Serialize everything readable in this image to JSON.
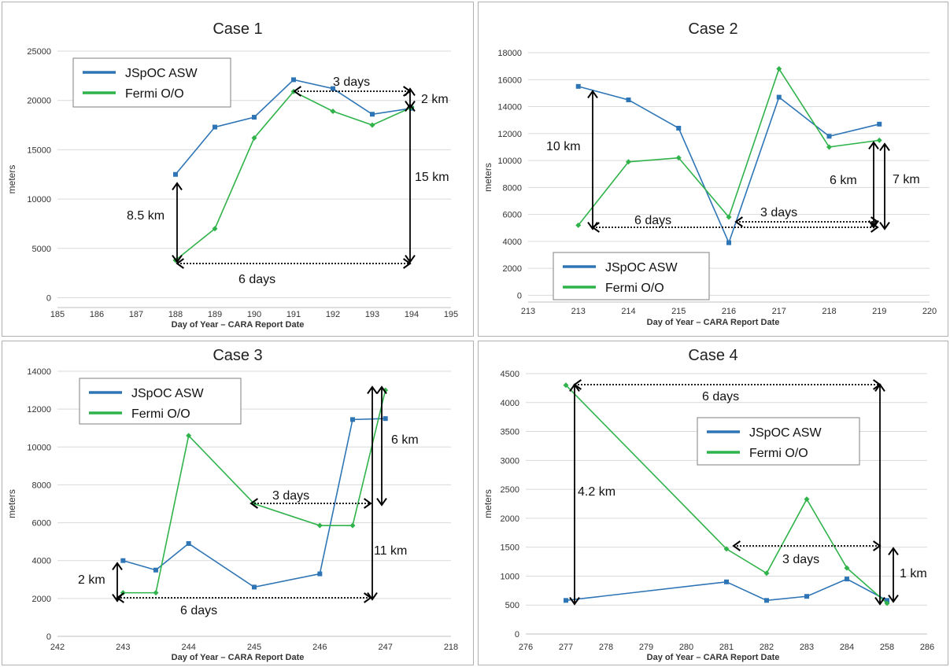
{
  "chart_data": [
    {
      "type": "line",
      "title": "Case 1",
      "xlabel": "Day of Year – CARA Report Date",
      "ylabel": "meters",
      "x_tick_labels": [
        "185",
        "186",
        "187",
        "188",
        "189",
        "190",
        "191",
        "192",
        "193",
        "194",
        "195"
      ],
      "y_ticks": [
        0,
        5000,
        10000,
        15000,
        20000,
        25000
      ],
      "ylim": [
        -1000,
        25000
      ],
      "grid": true,
      "legend": "top-left",
      "series": [
        {
          "name": "JSpOC ASW",
          "color": "#2e75b6",
          "marker": "square",
          "x": [
            3,
            4,
            5,
            6,
            7,
            8,
            9
          ],
          "y": [
            12500,
            17300,
            18300,
            22100,
            21200,
            18600,
            19200
          ]
        },
        {
          "name": "Fermi O/O",
          "color": "#2fb34a",
          "marker": "diamond",
          "x": [
            3,
            4,
            5,
            6,
            7,
            8,
            9
          ],
          "y": [
            3800,
            7000,
            16200,
            20900,
            18900,
            17500,
            19300
          ]
        }
      ],
      "annotations": [
        "8.5 km",
        "6 days",
        "3 days",
        "2 km",
        "15 km"
      ]
    },
    {
      "type": "line",
      "title": "Case 2",
      "xlabel": "Day of Year – CARA Report Date",
      "ylabel": "meters",
      "x_tick_labels": [
        "213",
        "213",
        "214",
        "215",
        "216",
        "217",
        "218",
        "219",
        "220"
      ],
      "y_ticks": [
        0,
        2000,
        4000,
        6000,
        8000,
        10000,
        12000,
        14000,
        16000,
        18000
      ],
      "ylim": [
        -500,
        18000
      ],
      "grid": true,
      "legend": "bottom-left",
      "series": [
        {
          "name": "JSpOC ASW",
          "color": "#2e75b6",
          "marker": "square",
          "x": [
            1,
            2,
            3,
            4,
            5,
            6,
            7
          ],
          "y": [
            15500,
            14500,
            12400,
            3900,
            14700,
            11800,
            12700
          ]
        },
        {
          "name": "Fermi O/O",
          "color": "#2fb34a",
          "marker": "diamond",
          "x": [
            1,
            2,
            3,
            4,
            5,
            6,
            7
          ],
          "y": [
            5200,
            9900,
            10200,
            5800,
            16800,
            11000,
            11500
          ]
        }
      ],
      "annotations": [
        "10 km",
        "6 days",
        "3 days",
        "6 km",
        "7 km"
      ]
    },
    {
      "type": "line",
      "title": "Case 3",
      "xlabel": "Day of Year – CARA Report Date",
      "ylabel": "meters",
      "x_tick_labels": [
        "242",
        "243",
        "244",
        "245",
        "246",
        "247",
        "218"
      ],
      "y_ticks": [
        0,
        2000,
        4000,
        6000,
        8000,
        10000,
        12000,
        14000
      ],
      "ylim": [
        0,
        14000
      ],
      "grid": true,
      "legend": "top-left",
      "series": [
        {
          "name": "JSpOC ASW",
          "color": "#2e75b6",
          "marker": "square",
          "x": [
            1,
            1.5,
            2,
            3,
            4,
            4.5,
            5
          ],
          "y": [
            4000,
            3500,
            4900,
            2600,
            3300,
            11450,
            11500
          ]
        },
        {
          "name": "Fermi O/O",
          "color": "#2fb34a",
          "marker": "diamond",
          "x": [
            1,
            1.5,
            2,
            3,
            4,
            4.5,
            5
          ],
          "y": [
            2300,
            2300,
            10600,
            7000,
            5850,
            5850,
            13000
          ]
        }
      ],
      "annotations": [
        "2 km",
        "6 days",
        "3 days",
        "6 km",
        "11 km"
      ]
    },
    {
      "type": "line",
      "title": "Case 4",
      "xlabel": "Day of Year – CARA Report Date",
      "ylabel": "meters",
      "x_tick_labels": [
        "276",
        "277",
        "278",
        "279",
        "280",
        "281",
        "282",
        "283",
        "284",
        "258",
        "286"
      ],
      "y_ticks": [
        0,
        500,
        1000,
        1500,
        2000,
        2500,
        3000,
        3500,
        4000,
        4500
      ],
      "ylim": [
        0,
        4500
      ],
      "grid": true,
      "legend": "center-right",
      "series": [
        {
          "name": "JSpOC ASW",
          "color": "#2e75b6",
          "marker": "square",
          "x": [
            1,
            5,
            6,
            7,
            8,
            9
          ],
          "y": [
            580,
            900,
            580,
            650,
            950,
            580
          ]
        },
        {
          "name": "Fermi O/O",
          "color": "#2fb34a",
          "marker": "diamond",
          "x": [
            1,
            5,
            6,
            7,
            8,
            9
          ],
          "y": [
            4300,
            1470,
            1050,
            2330,
            1140,
            530
          ]
        }
      ],
      "annotations": [
        "6 days",
        "4.2 km",
        "3 days",
        "1 km"
      ]
    }
  ]
}
